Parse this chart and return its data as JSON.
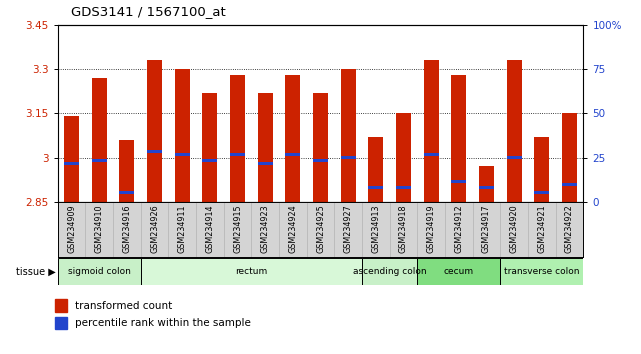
{
  "title": "GDS3141 / 1567100_at",
  "samples": [
    "GSM234909",
    "GSM234910",
    "GSM234916",
    "GSM234926",
    "GSM234911",
    "GSM234914",
    "GSM234915",
    "GSM234923",
    "GSM234924",
    "GSM234925",
    "GSM234927",
    "GSM234913",
    "GSM234918",
    "GSM234919",
    "GSM234912",
    "GSM234917",
    "GSM234920",
    "GSM234921",
    "GSM234922"
  ],
  "bar_values": [
    3.14,
    3.27,
    3.06,
    3.33,
    3.3,
    3.22,
    3.28,
    3.22,
    3.28,
    3.22,
    3.3,
    3.07,
    3.15,
    3.33,
    3.28,
    2.97,
    3.33,
    3.07,
    3.15
  ],
  "blue_values": [
    2.98,
    2.99,
    2.88,
    3.02,
    3.01,
    2.99,
    3.01,
    2.98,
    3.01,
    2.99,
    3.0,
    2.9,
    2.9,
    3.01,
    2.92,
    2.9,
    3.0,
    2.88,
    2.91
  ],
  "ymin": 2.85,
  "ymax": 3.45,
  "yticks": [
    2.85,
    3.0,
    3.15,
    3.3,
    3.45
  ],
  "ytick_labels": [
    "2.85",
    "3",
    "3.15",
    "3.3",
    "3.45"
  ],
  "grid_lines": [
    3.0,
    3.15,
    3.3
  ],
  "right_yticks_vals": [
    2.85,
    3.0,
    3.15,
    3.3,
    3.45
  ],
  "right_ytick_labels": [
    "0",
    "25",
    "50",
    "75",
    "100%"
  ],
  "tissue_groups": [
    {
      "label": "sigmoid colon",
      "start": 0,
      "end": 3,
      "color": "#c8f0c8"
    },
    {
      "label": "rectum",
      "start": 3,
      "end": 11,
      "color": "#d8f8d8"
    },
    {
      "label": "ascending colon",
      "start": 11,
      "end": 13,
      "color": "#c8f0c8"
    },
    {
      "label": "cecum",
      "start": 13,
      "end": 16,
      "color": "#80dd80"
    },
    {
      "label": "transverse colon",
      "start": 16,
      "end": 19,
      "color": "#b0f0b0"
    }
  ],
  "bar_color": "#cc2200",
  "blue_color": "#2244cc",
  "legend_items": [
    {
      "label": "transformed count",
      "color": "#cc2200"
    },
    {
      "label": "percentile rank within the sample",
      "color": "#2244cc"
    }
  ],
  "tissue_label": "tissue"
}
